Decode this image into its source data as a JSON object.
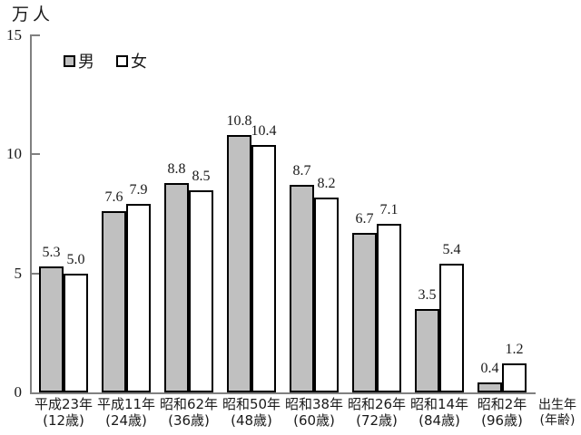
{
  "chart": {
    "unit_label": "万人",
    "axis_note_line1": "出生年",
    "axis_note_line2": "(年齢)"
  },
  "chart_data": {
    "type": "bar",
    "title": "",
    "ylabel": "万人",
    "xlabel": "出生年(年齢)",
    "ylim": [
      0,
      15
    ],
    "yticks": [
      0,
      5,
      10,
      15
    ],
    "grid": false,
    "legend_position": "top-left-inside",
    "categories": [
      "平成23年",
      "平成11年",
      "昭和62年",
      "昭和50年",
      "昭和38年",
      "昭和26年",
      "昭和14年",
      "昭和2年"
    ],
    "category_sublabels": [
      "(12歳)",
      "(24歳)",
      "(36歳)",
      "(48歳)",
      "(60歳)",
      "(72歳)",
      "(84歳)",
      "(96歳)"
    ],
    "series": [
      {
        "key": "male",
        "name": "男",
        "color": "#c0c0c0",
        "values": [
          5.3,
          7.6,
          8.8,
          10.8,
          8.7,
          6.7,
          3.5,
          0.4
        ]
      },
      {
        "key": "female",
        "name": "女",
        "color": "#ffffff",
        "values": [
          5.0,
          7.9,
          8.5,
          10.4,
          8.2,
          7.1,
          5.4,
          1.2
        ]
      }
    ]
  }
}
